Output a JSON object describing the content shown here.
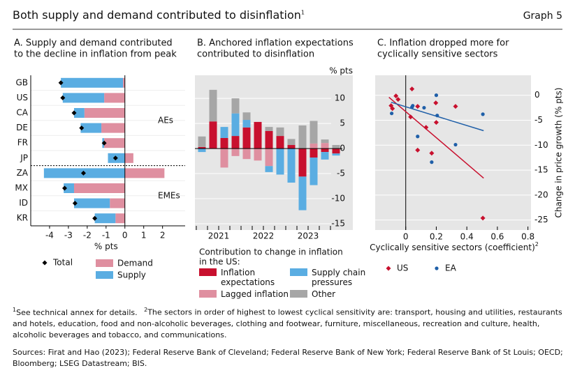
{
  "header": {
    "title": "Both supply and demand contributed to disinflation",
    "title_note": "1",
    "graph_label": "Graph 5"
  },
  "chart_data": [
    {
      "type": "hbar",
      "title": [
        "A. Supply and demand contributed",
        "to the decline in inflation from peak"
      ],
      "xlabel": "% pts",
      "categories": [
        "GB",
        "US",
        "CA",
        "DE",
        "FR",
        "JP",
        "ZA",
        "MX",
        "ID",
        "KR"
      ],
      "group_labels": [
        "AEs",
        "EMEs"
      ],
      "series": [
        {
          "name": "Demand",
          "color": "#df8fa0",
          "values": [
            -0.1,
            -1.1,
            -2.15,
            -1.25,
            -1.1,
            0.45,
            2.1,
            -2.7,
            -0.8,
            -0.5
          ]
        },
        {
          "name": "Supply",
          "color": "#5aade2",
          "values": [
            -3.3,
            -2.2,
            -0.55,
            -1.1,
            -0.1,
            -0.9,
            -4.3,
            -0.55,
            -1.9,
            -1.1
          ]
        }
      ],
      "total": {
        "name": "Total",
        "color": "#000000",
        "values": [
          -3.4,
          -3.3,
          -2.7,
          -2.3,
          -1.1,
          -0.5,
          -2.2,
          -3.2,
          -2.65,
          -1.6
        ]
      },
      "xlim": [
        -5,
        3.2
      ],
      "xticks": [
        -4,
        -3,
        -2,
        -1,
        0,
        1,
        2
      ]
    },
    {
      "type": "bar",
      "title": [
        "B. Anchored inflation expectations",
        "contributed to disinflation"
      ],
      "ylabel": "% pts",
      "categories": [
        null,
        "2021",
        null,
        null,
        null,
        "2022",
        null,
        null,
        null,
        "2023",
        null,
        null,
        null
      ],
      "legend_title": [
        "Contribution to change in inflation",
        "in the US:"
      ],
      "series": [
        {
          "name": "Inflation expectations",
          "color": "#c8102e",
          "values": [
            0.3,
            5.4,
            2.1,
            2.5,
            4.2,
            5.3,
            3.5,
            2.5,
            0.7,
            -5.6,
            -1.8,
            -0.7,
            -1.0
          ]
        },
        {
          "name": "Lagged inflation",
          "color": "#df8fa0",
          "values": [
            0,
            0,
            -3.8,
            -1.5,
            -2.1,
            -2.4,
            -3.5,
            0,
            0,
            0,
            1.0,
            1.1,
            0
          ]
        },
        {
          "name": "Supply chain pressures",
          "color": "#5aade2",
          "values": [
            -0.7,
            0,
            2.2,
            4.5,
            1.5,
            0,
            -1.2,
            -5.2,
            -6.8,
            -6.7,
            -5.5,
            -1.5,
            -0.4
          ]
        },
        {
          "name": "Other",
          "color": "#a6a6a6",
          "values": [
            2.1,
            6.3,
            0,
            3.0,
            1.5,
            0,
            0.8,
            1.7,
            1.2,
            4.6,
            4.5,
            0.7,
            0.7
          ]
        }
      ],
      "ylim": [
        -16.25,
        14.6
      ],
      "yticks": [
        -15,
        -10,
        -5,
        0,
        5,
        10
      ],
      "grid": true
    },
    {
      "type": "scatter",
      "title": [
        "C. Inflation dropped more for",
        "cyclically sensitive sectors"
      ],
      "xlabel": "Cyclically sensitive sectors (coefficient)",
      "xlabel_note": "2",
      "ylabel": "Change in price growth (% pts)",
      "series": [
        {
          "name": "US",
          "color": "#c8102e",
          "marker": "diamond",
          "x": [
            -0.064,
            -0.05,
            -0.096,
            -0.087,
            0.041,
            0.078,
            0.032,
            0.078,
            0.133,
            0.17,
            0.197,
            0.2,
            0.326,
            0.505
          ],
          "values": [
            -0.14,
            -0.84,
            -2.1,
            -2.66,
            1.26,
            -2.24,
            -4.34,
            -11.0,
            -6.43,
            -11.6,
            -1.54,
            -5.45,
            -2.24,
            -24.6
          ],
          "trend": {
            "x": [
              -0.11,
              0.51
            ],
            "values": [
              -0.4,
              -16.6
            ]
          }
        },
        {
          "name": "EA",
          "color": "#1f5fa8",
          "marker": "dot",
          "x": [
            -0.092,
            0.041,
            0.046,
            0.12,
            0.2,
            0.206,
            0.078,
            0.326,
            0.17,
            0.505
          ],
          "values": [
            -3.64,
            -2.38,
            -2.1,
            -2.5,
            0,
            -4.06,
            -8.25,
            -9.9,
            -13.4,
            -3.8
          ],
          "trend": {
            "x": [
              -0.096,
              0.51
            ],
            "values": [
              -1.4,
              -7.1
            ]
          }
        }
      ],
      "xlim": [
        -0.2,
        0.82
      ],
      "xticks": [
        0,
        0.2,
        0.4,
        0.6,
        0.8
      ],
      "ylim": [
        -27,
        4
      ],
      "yticks": [
        -25,
        -20,
        -15,
        -10,
        -5,
        0
      ],
      "grid": true
    }
  ],
  "footnotes": [
    {
      "mark": "1",
      "text": "See technical annex for details."
    },
    {
      "mark": "2",
      "text": "The sectors in order of highest to lowest cyclical sensitivity are: transport, housing and utilities, restaurants and hotels, education, food and non-alcoholic beverages, clothing and footwear, furniture, miscellaneous, recreation and culture, health, alcoholic beverages and tobacco, and communications."
    }
  ],
  "sources": "Sources: Firat and Hao (2023); Federal Reserve Bank of Cleveland; Federal Reserve Bank of New York; Federal Reserve Bank of St Louis; OECD; Bloomberg; LSEG Datastream; BIS."
}
